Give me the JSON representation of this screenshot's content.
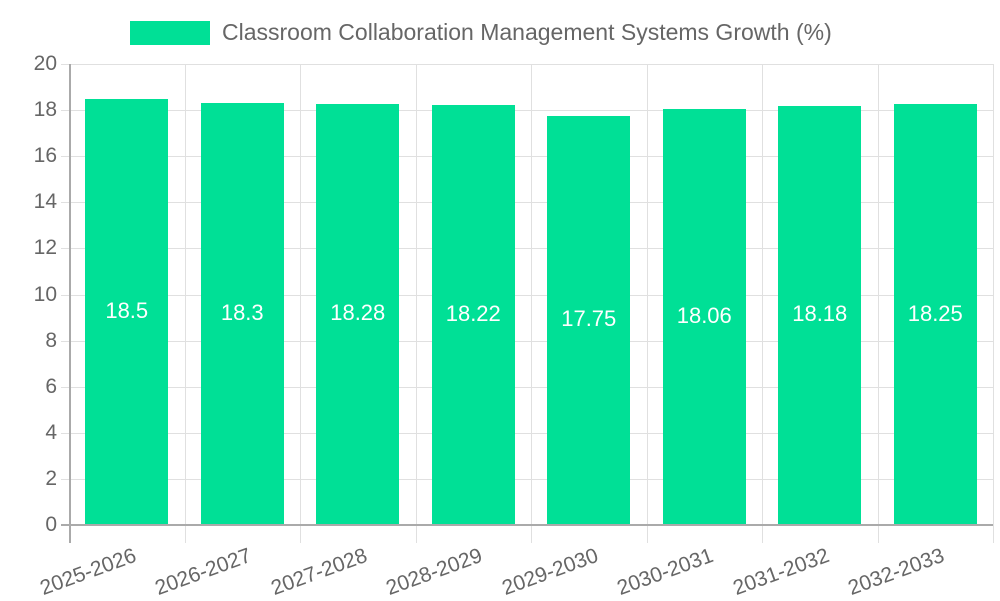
{
  "chart_data": {
    "type": "bar",
    "title": "",
    "legend": [
      "Classroom Collaboration Management Systems Growth (%)"
    ],
    "legend_position": "top",
    "categories": [
      "2025-2026",
      "2026-2027",
      "2027-2028",
      "2028-2029",
      "2029-2030",
      "2030-2031",
      "2031-2032",
      "2032-2033"
    ],
    "series": [
      {
        "name": "Classroom Collaboration Management Systems Growth (%)",
        "values": [
          18.5,
          18.3,
          18.28,
          18.22,
          17.75,
          18.06,
          18.18,
          18.25
        ],
        "color": "#00e096"
      }
    ],
    "value_labels": [
      "18.5",
      "18.3",
      "18.28",
      "18.22",
      "17.75",
      "18.06",
      "18.18",
      "18.25"
    ],
    "xlabel": "",
    "ylabel": "",
    "ylim": [
      0,
      20
    ],
    "yticks": [
      "0",
      "2",
      "4",
      "6",
      "8",
      "10",
      "12",
      "14",
      "16",
      "18",
      "20"
    ],
    "grid": true
  }
}
